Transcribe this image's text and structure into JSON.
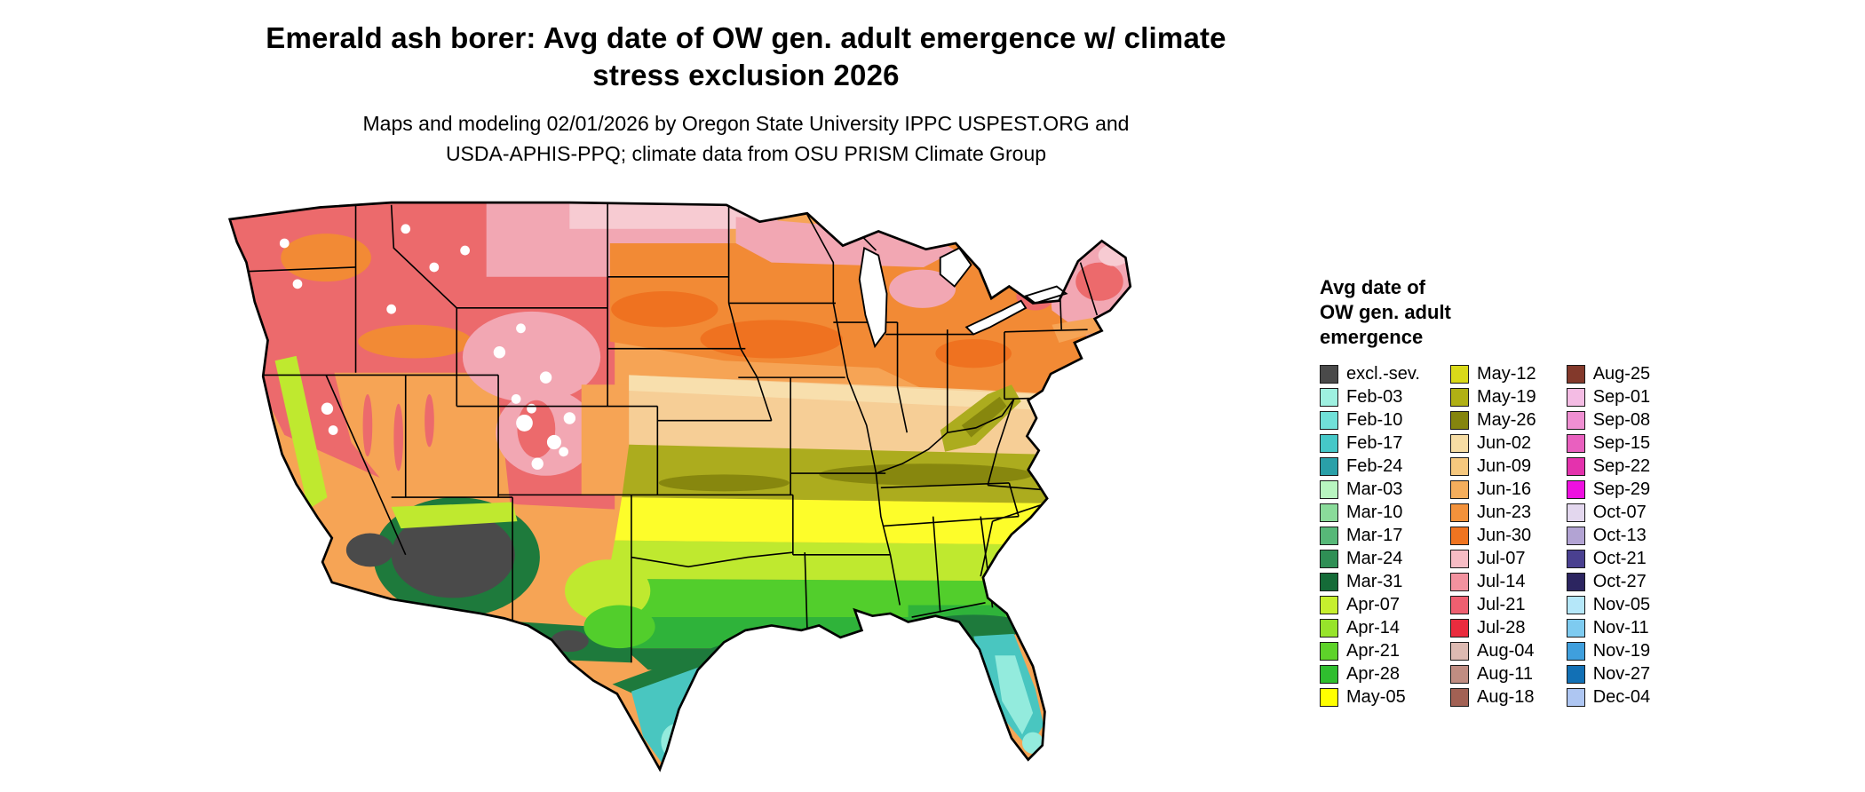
{
  "title_lines": [
    "Emerald ash borer: Avg date of OW gen. adult emergence w/ climate",
    "stress exclusion 2026"
  ],
  "subtitle_lines": [
    "Maps and modeling 02/01/2026 by Oregon State University IPPC USPEST.ORG and",
    "USDA-APHIS-PPQ; climate data from OSU PRISM Climate Group"
  ],
  "legend": {
    "title_lines": [
      "Avg date of",
      "OW gen. adult",
      "emergence"
    ],
    "columns": [
      {
        "entries": [
          {
            "label": "excl.-sev.",
            "color": "#4a4a4a"
          },
          {
            "label": "Feb-03",
            "color": "#9ef0e0"
          },
          {
            "label": "Feb-10",
            "color": "#70e0d8"
          },
          {
            "label": "Feb-17",
            "color": "#46c8c8"
          },
          {
            "label": "Feb-24",
            "color": "#2aa0a8"
          },
          {
            "label": "Mar-03",
            "color": "#b8f5c0"
          },
          {
            "label": "Mar-10",
            "color": "#8adb9a"
          },
          {
            "label": "Mar-17",
            "color": "#57b878"
          },
          {
            "label": "Mar-24",
            "color": "#2f8f55"
          },
          {
            "label": "Mar-31",
            "color": "#156b38"
          },
          {
            "label": "Apr-07",
            "color": "#c6ef2e"
          },
          {
            "label": "Apr-14",
            "color": "#97e42b"
          },
          {
            "label": "Apr-21",
            "color": "#5ed32a"
          },
          {
            "label": "Apr-28",
            "color": "#2fbe2f"
          },
          {
            "label": "May-05",
            "color": "#ffff00"
          }
        ]
      },
      {
        "entries": [
          {
            "label": "May-12",
            "color": "#d9d919"
          },
          {
            "label": "May-19",
            "color": "#b0b014"
          },
          {
            "label": "May-26",
            "color": "#85850e"
          },
          {
            "label": "Jun-02",
            "color": "#f7dda4"
          },
          {
            "label": "Jun-09",
            "color": "#f6c87e"
          },
          {
            "label": "Jun-16",
            "color": "#f5ae5c"
          },
          {
            "label": "Jun-23",
            "color": "#f3923b"
          },
          {
            "label": "Jun-30",
            "color": "#ef7420"
          },
          {
            "label": "Jul-07",
            "color": "#f6bcc4"
          },
          {
            "label": "Jul-14",
            "color": "#f2929f"
          },
          {
            "label": "Jul-21",
            "color": "#ee5f70"
          },
          {
            "label": "Jul-28",
            "color": "#ea2c3e"
          },
          {
            "label": "Aug-04",
            "color": "#ddbab2"
          },
          {
            "label": "Aug-11",
            "color": "#c08d82"
          },
          {
            "label": "Aug-18",
            "color": "#a26154"
          }
        ]
      },
      {
        "entries": [
          {
            "label": "Aug-25",
            "color": "#83392b"
          },
          {
            "label": "Sep-01",
            "color": "#f4bce4"
          },
          {
            "label": "Sep-08",
            "color": "#ef8fd2"
          },
          {
            "label": "Sep-15",
            "color": "#e960bf"
          },
          {
            "label": "Sep-22",
            "color": "#e432ad"
          },
          {
            "label": "Sep-29",
            "color": "#ee10e0"
          },
          {
            "label": "Oct-07",
            "color": "#e3d7ee"
          },
          {
            "label": "Oct-13",
            "color": "#b2a3d3"
          },
          {
            "label": "Oct-21",
            "color": "#4a4090"
          },
          {
            "label": "Oct-27",
            "color": "#2c2560"
          },
          {
            "label": "Nov-05",
            "color": "#b5e7f9"
          },
          {
            "label": "Nov-11",
            "color": "#7ecbf0"
          },
          {
            "label": "Nov-19",
            "color": "#3f9fdd"
          },
          {
            "label": "Nov-27",
            "color": "#1270b5"
          },
          {
            "label": "Dec-04",
            "color": "#aec6f2"
          }
        ]
      }
    ]
  },
  "map": {
    "palette": {
      "border": "#000000",
      "white": "#ffffff",
      "base_orange": "#f6a455",
      "deep_orange": "#f28a35",
      "strong_orange": "#ef7220",
      "tan": "#f6ce96",
      "light_tan": "#f8dfad",
      "olive": "#acac1e",
      "dark_olive": "#87870e",
      "yellow": "#fdfd2a",
      "yellow_green": "#bfe92f",
      "green": "#52ce2c",
      "med_green": "#2fb33a",
      "dark_green": "#1e7a3c",
      "teal_green": "#3fa180",
      "teal": "#49c6c0",
      "cyan": "#93ebdd",
      "red": "#ec6a6c",
      "north_pink": "#f2a7b3",
      "light_pink": "#f7cbd2",
      "gray": "#4a4a4a"
    }
  }
}
